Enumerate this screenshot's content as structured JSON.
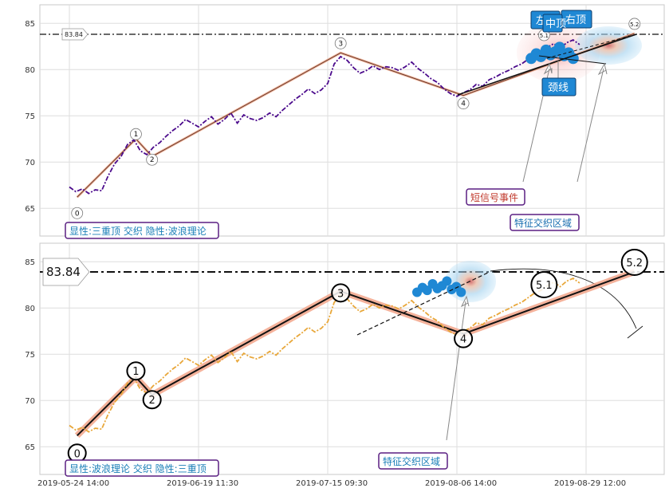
{
  "chart_data": [
    {
      "type": "line",
      "panel": "top",
      "ylim": [
        62,
        87
      ],
      "yticks": [
        65,
        70,
        75,
        80,
        85
      ],
      "grid": true,
      "reference_line": {
        "value": 83.84,
        "label": "83.84"
      },
      "price_style": "dash-dot",
      "price_color": "#4b0a8c",
      "wave_points": [
        {
          "label": "0",
          "t": 1.2,
          "y": 66.2
        },
        {
          "label": "1",
          "t": 10.3,
          "y": 72.5
        },
        {
          "label": "2",
          "t": 12.8,
          "y": 70.6
        },
        {
          "label": "3",
          "t": 42.0,
          "y": 81.8
        },
        {
          "label": "4",
          "t": 61.0,
          "y": 77.2
        },
        {
          "label": "5.1",
          "t": 73.5,
          "y": 82.0
        },
        {
          "label": "5.2",
          "t": 87.5,
          "y": 83.9
        }
      ],
      "price_series": [
        [
          0,
          67.3
        ],
        [
          1,
          66.8
        ],
        [
          2,
          67.1
        ],
        [
          3,
          66.6
        ],
        [
          4,
          67.0
        ],
        [
          5,
          66.9
        ],
        [
          6,
          68.5
        ],
        [
          7,
          69.8
        ],
        [
          8,
          70.6
        ],
        [
          9,
          71.9
        ],
        [
          10,
          72.4
        ],
        [
          11,
          71.2
        ],
        [
          12,
          70.8
        ],
        [
          13,
          71.6
        ],
        [
          14,
          72.1
        ],
        [
          15,
          72.8
        ],
        [
          16,
          73.4
        ],
        [
          17,
          73.9
        ],
        [
          18,
          74.6
        ],
        [
          19,
          74.2
        ],
        [
          20,
          73.8
        ],
        [
          21,
          74.4
        ],
        [
          22,
          74.9
        ],
        [
          23,
          74.1
        ],
        [
          24,
          74.6
        ],
        [
          25,
          75.3
        ],
        [
          26,
          74.2
        ],
        [
          27,
          75.1
        ],
        [
          28,
          74.7
        ],
        [
          29,
          74.5
        ],
        [
          30,
          74.8
        ],
        [
          31,
          75.3
        ],
        [
          32,
          74.9
        ],
        [
          33,
          75.6
        ],
        [
          34,
          76.2
        ],
        [
          35,
          76.8
        ],
        [
          36,
          77.3
        ],
        [
          37,
          77.9
        ],
        [
          38,
          77.4
        ],
        [
          39,
          77.8
        ],
        [
          40,
          78.5
        ],
        [
          41,
          80.6
        ],
        [
          42,
          81.4
        ],
        [
          43,
          81.0
        ],
        [
          44,
          80.2
        ],
        [
          45,
          79.6
        ],
        [
          46,
          79.9
        ],
        [
          47,
          80.4
        ],
        [
          48,
          80.0
        ],
        [
          49,
          80.3
        ],
        [
          50,
          80.2
        ],
        [
          51,
          79.9
        ],
        [
          52,
          80.3
        ],
        [
          53,
          80.8
        ],
        [
          54,
          80.1
        ],
        [
          55,
          79.6
        ],
        [
          56,
          79.0
        ],
        [
          57,
          78.6
        ],
        [
          58,
          77.9
        ],
        [
          59,
          77.4
        ],
        [
          60,
          77.1
        ],
        [
          61,
          77.5
        ],
        [
          62,
          77.8
        ],
        [
          63,
          78.4
        ],
        [
          64,
          78.2
        ],
        [
          65,
          78.9
        ],
        [
          66,
          79.2
        ],
        [
          67,
          79.6
        ],
        [
          68,
          79.9
        ],
        [
          69,
          80.3
        ],
        [
          70,
          80.6
        ],
        [
          71,
          81.1
        ],
        [
          72,
          81.6
        ],
        [
          73,
          81.9
        ],
        [
          74,
          82.4
        ],
        [
          75,
          82.8
        ],
        [
          76,
          82.3
        ],
        [
          77,
          82.9
        ],
        [
          78,
          83.2
        ],
        [
          79,
          82.7
        ]
      ],
      "cluster_points": [
        [
          71.5,
          81.2
        ],
        [
          72.3,
          81.7
        ],
        [
          73.0,
          81.4
        ],
        [
          73.8,
          82.1
        ],
        [
          74.5,
          81.6
        ],
        [
          75.2,
          81.9
        ],
        [
          75.9,
          82.4
        ],
        [
          76.6,
          81.5
        ],
        [
          77.3,
          81.8
        ],
        [
          78.0,
          81.2
        ]
      ],
      "annotations": {
        "left_top": "左顶",
        "middle_top": "中顶",
        "right_top": "右顶",
        "neckline": "颈线",
        "short_signal_event": "短信号事件",
        "feature_zone": "特征交织区域"
      },
      "caption": "显性:三重顶 交织 隐性:波浪理论"
    },
    {
      "type": "line",
      "panel": "bottom",
      "ylim": [
        62,
        87
      ],
      "yticks": [
        65,
        70,
        75,
        80,
        85
      ],
      "grid": true,
      "reference_line": {
        "value": 83.84,
        "label": "83.84"
      },
      "price_style": "dash-dot",
      "price_color": "#e8a73a",
      "wave_points": [
        {
          "label": "0",
          "t": 1.2,
          "y": 66.2
        },
        {
          "label": "1",
          "t": 10.3,
          "y": 72.5
        },
        {
          "label": "2",
          "t": 12.8,
          "y": 70.6
        },
        {
          "label": "3",
          "t": 42.0,
          "y": 81.8
        },
        {
          "label": "4",
          "t": 61.0,
          "y": 77.2
        },
        {
          "label": "5.1",
          "t": 73.5,
          "y": 82.0
        },
        {
          "label": "5.2",
          "t": 87.5,
          "y": 83.9
        }
      ],
      "x_tick_labels": [
        "2019-05-24 14:00",
        "2019-06-19 11:30",
        "2019-07-15 09:30",
        "2019-08-06 14:00",
        "2019-08-29 12:00"
      ],
      "x_tick_positions": [
        0,
        20,
        40,
        60,
        80
      ],
      "annotations": {
        "feature_zone": "特征交织区域"
      },
      "caption": "显性:波浪理论 交织 隐性:三重顶"
    }
  ]
}
